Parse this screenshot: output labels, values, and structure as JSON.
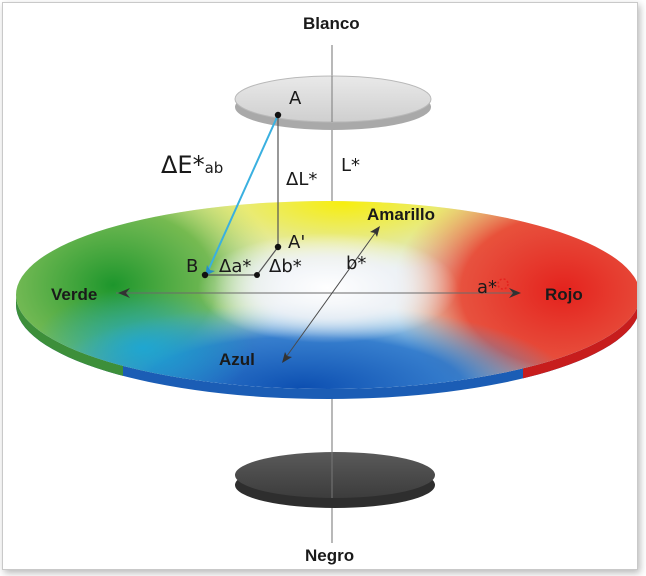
{
  "labels": {
    "top": "Blanco",
    "bottom": "Negro",
    "left": "Verde",
    "right": "Rojo",
    "upper": "Amarillo",
    "lower": "Azul"
  },
  "axes": {
    "lightness": "L*",
    "red_green": "a*",
    "yellow_blue": "b*"
  },
  "points": {
    "a": "A",
    "a_prime": "A'",
    "b": "B"
  },
  "deltas": {
    "delta_e_main": "ΔE*",
    "delta_e_sub": "ab",
    "delta_l": "ΔL*",
    "delta_a": "Δa*",
    "delta_b": "Δb*"
  },
  "colors": {
    "verde": "#1f9a2f",
    "rojo": "#e42a24",
    "amarillo": "#f5ea16",
    "azul": "#1558b8",
    "blanco_disc": "#d8d8d8",
    "negro_disc": "#4a4a4a",
    "delta_e_line": "#3ab0e0"
  }
}
